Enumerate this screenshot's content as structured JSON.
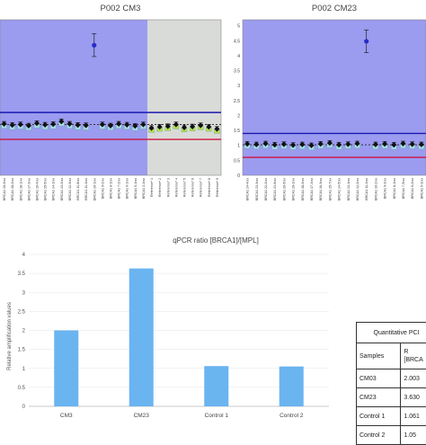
{
  "chart_data": [
    {
      "type": "scatter",
      "title": "P002 CM3",
      "panel": "left",
      "y_reference_lines": {
        "upper": 2.1,
        "lower": 1.2
      },
      "y_mean_line": 1.7,
      "shaded_normal_region_color": "#9b9bf0",
      "shaded_reference_region_color": "#d9dbd8",
      "categories": [
        "BRCA1 19-3rxx",
        "BRCA1 18-2rxx",
        "BRCA1 18-1rxx",
        "BRCA1 17-3rxx",
        "BRCA1 16-4rxx",
        "BRCA1 15-5rxx",
        "BRCA1 14-1rxx",
        "BRCA1 13-2rxx",
        "BRCA1 12-3rxx",
        "BRCA1 11-8rxx",
        "BRCA1 11-1rxx",
        "BRCA1 10-1rxx",
        "BRCA1 9-2rxx",
        "BRCA1 8-1rxx",
        "BRCA1 7-2rxx",
        "BRCA1 6-1rxx",
        "BRCA1 5-1rxx",
        "BRCA1 3-1rxx",
        "Reference* 1",
        "Reference* 2",
        "Reference* 3",
        "Reference* 4",
        "Reference* 5",
        "Reference* 6",
        "Reference* 7",
        "Reference* 8",
        "Reference* 9"
      ],
      "values": [
        1.72,
        1.68,
        1.7,
        1.66,
        1.74,
        1.69,
        1.71,
        1.8,
        1.72,
        1.68,
        1.67,
        4.35,
        1.7,
        1.66,
        1.72,
        1.69,
        1.65,
        1.7,
        1.58,
        1.62,
        1.64,
        1.7,
        1.6,
        1.63,
        1.67,
        1.62,
        1.55
      ],
      "highlight_color": "#2b2bc8"
    },
    {
      "type": "scatter",
      "title": "P002 CM23",
      "panel": "right",
      "yticks": [
        "0",
        "0.5",
        "1",
        "1.5",
        "2",
        "2.5",
        "3",
        "3.5",
        "4",
        "4.5",
        "5"
      ],
      "ylim": [
        0,
        5.2
      ],
      "y_reference_lines": {
        "upper": 1.4,
        "lower": 0.6
      },
      "y_mean_line": 1.02,
      "categories": [
        "BRCA1 24-4rxx",
        "BRCA1 23-3rxx",
        "BRCA1 22-2rxx",
        "BRCA1 21-6rxx",
        "BRCA1 20-5rxx",
        "BRCA1 19-1rxx",
        "BRCA1 18-3rxx",
        "BRCA1 17-4rxx",
        "BRCA1 16-3rxx",
        "BRCA1 15-7rxx",
        "BRCA1 14-5rxx",
        "BRCA1 13-1rxx",
        "BRCA1 12-2rxx",
        "BRCA1 11-4rxx",
        "BRCA1 10-2rxx",
        "BRCA1 9-3rxx",
        "BRCA1 8-1rxx",
        "BRCA1 7-5rxx",
        "BRCA1 6-2rxx",
        "BRCA1 5-3rxx"
      ],
      "values": [
        1.05,
        1.03,
        1.06,
        1.02,
        1.04,
        1.01,
        1.03,
        1.0,
        1.05,
        1.08,
        1.02,
        1.04,
        1.06,
        4.48,
        1.03,
        1.05,
        1.02,
        1.06,
        1.04,
        1.03
      ]
    },
    {
      "type": "bar",
      "title": "qPCR ratio [BRCA1]/[MPL]",
      "ylabel": "Relative amplification values",
      "categories": [
        "CM3",
        "CM23",
        "Control 1",
        "Control 2"
      ],
      "values": [
        2.0,
        3.63,
        1.06,
        1.05
      ],
      "ylim": [
        0,
        4
      ],
      "yticks": [
        "0",
        "0.5",
        "1",
        "1.5",
        "2",
        "2.5",
        "3",
        "3.5",
        "4"
      ],
      "bar_color": "#6ab4f0"
    }
  ],
  "table": {
    "title": "Quantitative PCI",
    "header_samples": "Samples",
    "header_value": "R",
    "header_value_sub": "[BRCA",
    "rows": [
      {
        "sample": "CM03",
        "value": "2.003"
      },
      {
        "sample": "CM23",
        "value": "3.630"
      },
      {
        "sample": "Control 1",
        "value": "1.061"
      },
      {
        "sample": "Control 2",
        "value": "1.05"
      }
    ]
  }
}
